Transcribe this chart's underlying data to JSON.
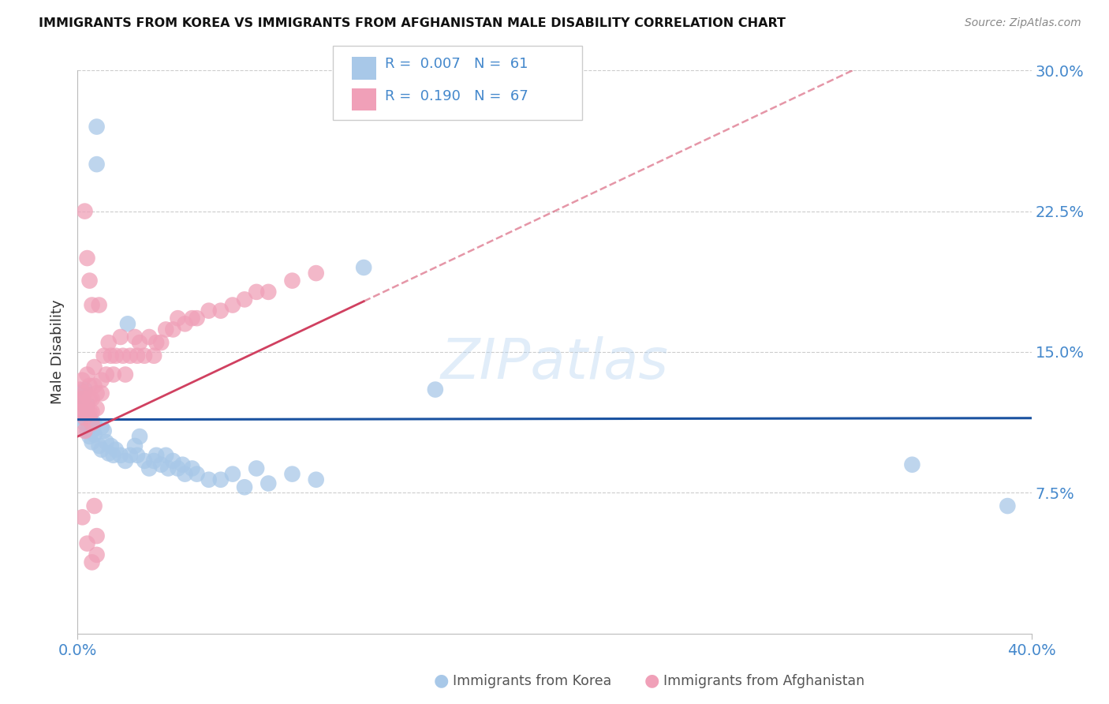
{
  "title": "IMMIGRANTS FROM KOREA VS IMMIGRANTS FROM AFGHANISTAN MALE DISABILITY CORRELATION CHART",
  "source": "Source: ZipAtlas.com",
  "xlabel_korea": "Immigrants from Korea",
  "xlabel_afghanistan": "Immigrants from Afghanistan",
  "ylabel": "Male Disability",
  "watermark": "ZIPatlas",
  "legend_korea_r": "0.007",
  "legend_korea_n": "61",
  "legend_afghanistan_r": "0.190",
  "legend_afghanistan_n": "67",
  "xmin": 0.0,
  "xmax": 0.4,
  "ymin": 0.0,
  "ymax": 0.3,
  "ytick_vals": [
    0.075,
    0.15,
    0.225,
    0.3
  ],
  "ytick_labels": [
    "7.5%",
    "15.0%",
    "22.5%",
    "30.0%"
  ],
  "color_korea": "#a8c8e8",
  "color_afghanistan": "#f0a0b8",
  "color_korea_line": "#1a52a0",
  "color_afghanistan_line": "#d04060",
  "color_tick_labels": "#4488cc",
  "color_grid": "#cccccc",
  "korea_x": [
    0.001,
    0.001,
    0.001,
    0.002,
    0.002,
    0.002,
    0.003,
    0.003,
    0.003,
    0.004,
    0.004,
    0.005,
    0.005,
    0.005,
    0.006,
    0.006,
    0.007,
    0.007,
    0.008,
    0.008,
    0.009,
    0.01,
    0.01,
    0.011,
    0.012,
    0.013,
    0.014,
    0.015,
    0.016,
    0.018,
    0.02,
    0.021,
    0.022,
    0.024,
    0.025,
    0.026,
    0.028,
    0.03,
    0.032,
    0.033,
    0.035,
    0.037,
    0.038,
    0.04,
    0.042,
    0.044,
    0.045,
    0.048,
    0.05,
    0.055,
    0.06,
    0.065,
    0.07,
    0.075,
    0.08,
    0.09,
    0.1,
    0.12,
    0.15,
    0.35,
    0.39
  ],
  "korea_y": [
    0.128,
    0.122,
    0.118,
    0.125,
    0.12,
    0.115,
    0.13,
    0.118,
    0.112,
    0.108,
    0.122,
    0.115,
    0.11,
    0.105,
    0.108,
    0.102,
    0.112,
    0.106,
    0.27,
    0.25,
    0.1,
    0.11,
    0.098,
    0.108,
    0.102,
    0.096,
    0.1,
    0.095,
    0.098,
    0.095,
    0.092,
    0.165,
    0.095,
    0.1,
    0.095,
    0.105,
    0.092,
    0.088,
    0.092,
    0.095,
    0.09,
    0.095,
    0.088,
    0.092,
    0.088,
    0.09,
    0.085,
    0.088,
    0.085,
    0.082,
    0.082,
    0.085,
    0.078,
    0.088,
    0.08,
    0.085,
    0.082,
    0.195,
    0.13,
    0.09,
    0.068
  ],
  "afghanistan_x": [
    0.001,
    0.001,
    0.001,
    0.002,
    0.002,
    0.002,
    0.003,
    0.003,
    0.003,
    0.003,
    0.004,
    0.004,
    0.005,
    0.005,
    0.005,
    0.006,
    0.006,
    0.006,
    0.007,
    0.007,
    0.008,
    0.008,
    0.009,
    0.01,
    0.01,
    0.011,
    0.012,
    0.013,
    0.014,
    0.015,
    0.016,
    0.018,
    0.019,
    0.02,
    0.022,
    0.024,
    0.025,
    0.026,
    0.028,
    0.03,
    0.032,
    0.033,
    0.035,
    0.037,
    0.04,
    0.042,
    0.045,
    0.048,
    0.05,
    0.055,
    0.06,
    0.065,
    0.07,
    0.075,
    0.08,
    0.09,
    0.1,
    0.003,
    0.004,
    0.005,
    0.006,
    0.007,
    0.008,
    0.002,
    0.004,
    0.006,
    0.008
  ],
  "afghanistan_y": [
    0.13,
    0.122,
    0.118,
    0.135,
    0.125,
    0.118,
    0.128,
    0.122,
    0.115,
    0.108,
    0.138,
    0.118,
    0.132,
    0.125,
    0.118,
    0.125,
    0.118,
    0.112,
    0.142,
    0.132,
    0.128,
    0.12,
    0.175,
    0.135,
    0.128,
    0.148,
    0.138,
    0.155,
    0.148,
    0.138,
    0.148,
    0.158,
    0.148,
    0.138,
    0.148,
    0.158,
    0.148,
    0.155,
    0.148,
    0.158,
    0.148,
    0.155,
    0.155,
    0.162,
    0.162,
    0.168,
    0.165,
    0.168,
    0.168,
    0.172,
    0.172,
    0.175,
    0.178,
    0.182,
    0.182,
    0.188,
    0.192,
    0.225,
    0.2,
    0.188,
    0.175,
    0.068,
    0.042,
    0.062,
    0.048,
    0.038,
    0.052
  ],
  "korea_line_slope": 0.007,
  "korea_line_intercept": 0.112,
  "afghanistan_line_slope": 0.19,
  "afghanistan_line_intercept": 0.105
}
